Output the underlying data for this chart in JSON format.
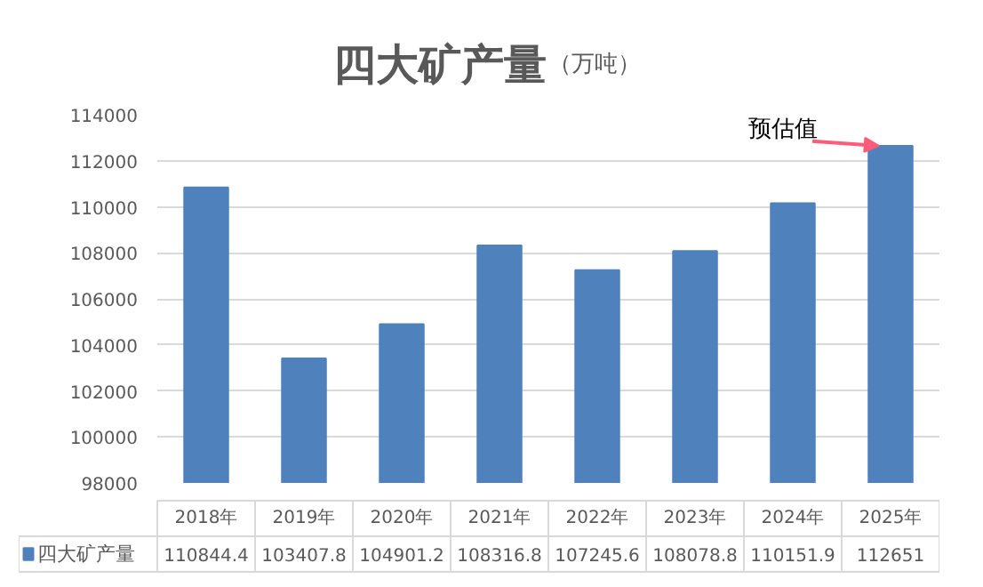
{
  "chart_data": {
    "type": "bar",
    "title": "四大矿产量",
    "subtitle": "（万吨）",
    "categories": [
      "2018年",
      "2019年",
      "2020年",
      "2021年",
      "2022年",
      "2023年",
      "2024年",
      "2025年"
    ],
    "series": [
      {
        "name": "四大矿产量",
        "color": "#4f81bd",
        "values": [
          110844.4,
          103407.8,
          104901.2,
          108316.8,
          107245.6,
          108078.8,
          110151.9,
          112651
        ]
      }
    ],
    "ylim": [
      98000,
      114000
    ],
    "yticks": [
      98000,
      100000,
      102000,
      104000,
      106000,
      108000,
      110000,
      112000,
      114000
    ],
    "grid": "y",
    "legend": "bottom",
    "data_labels": true,
    "annotations": [
      {
        "text": "预估值",
        "x": "2025年",
        "y": 112651
      }
    ]
  }
}
